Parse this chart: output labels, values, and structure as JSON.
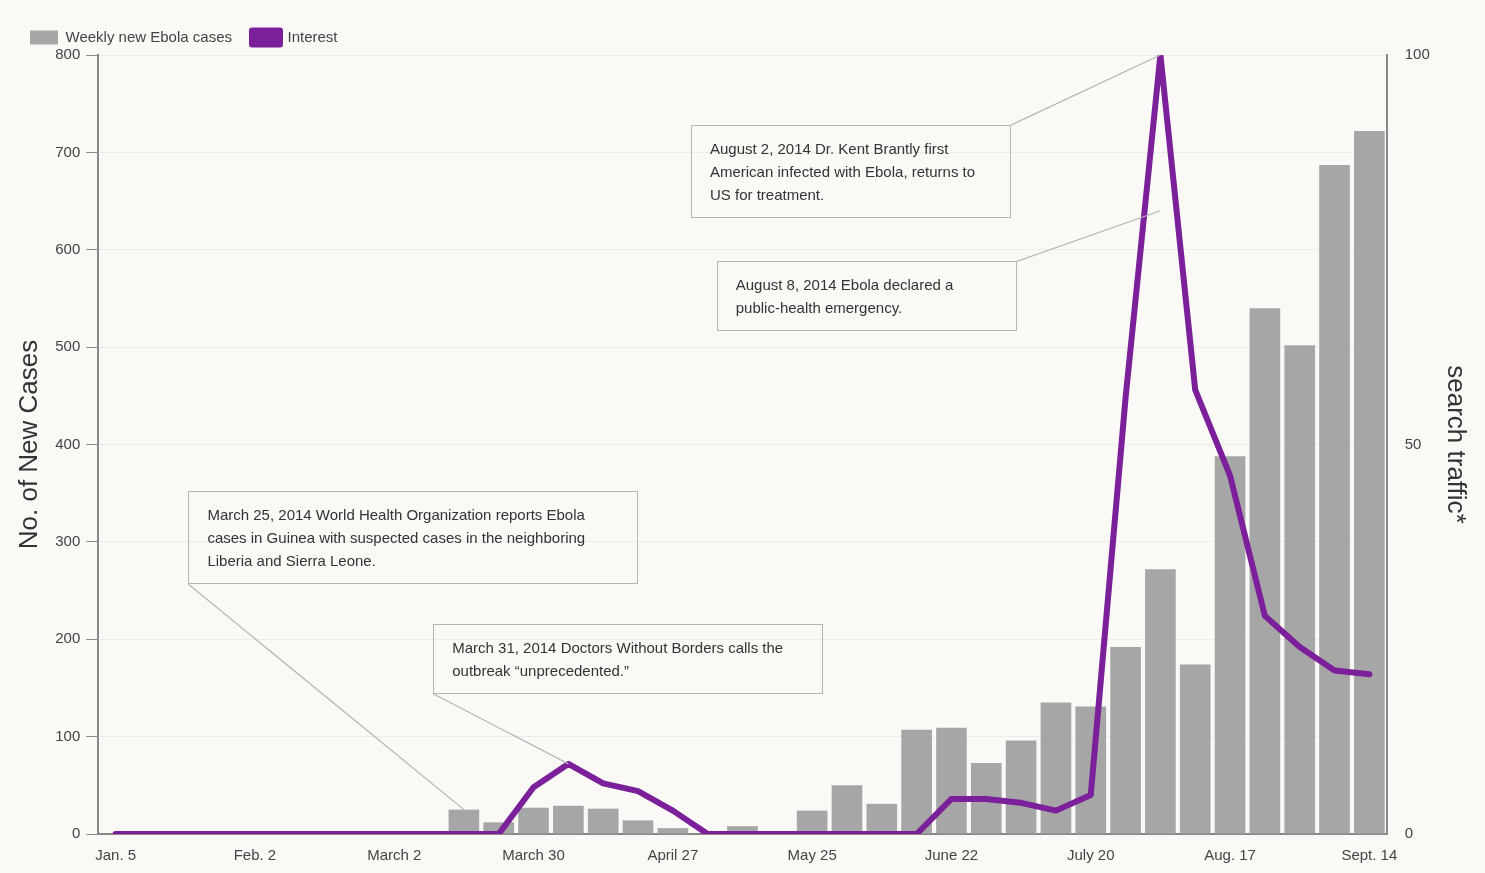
{
  "chart_data": {
    "type": "bar",
    "categories": [
      "Jan. 5",
      null,
      null,
      null,
      "Feb. 2",
      null,
      null,
      null,
      "March 2",
      null,
      null,
      null,
      "March 30",
      null,
      null,
      null,
      "April 27",
      null,
      null,
      null,
      "May 25",
      null,
      null,
      null,
      "June 22",
      null,
      null,
      null,
      "July 20",
      null,
      null,
      null,
      "Aug. 17",
      null,
      null,
      null,
      "Sept. 14"
    ],
    "series": [
      {
        "name": "Weekly new Ebola cases",
        "color": "#a6a6a6",
        "values": [
          0,
          0,
          0,
          0,
          0,
          0,
          0,
          0,
          0,
          0,
          25,
          12,
          27,
          29,
          26,
          14,
          6,
          0,
          8,
          null,
          24,
          50,
          31,
          107,
          109,
          73,
          96,
          135,
          131,
          192,
          272,
          174,
          388,
          540,
          502,
          687,
          722
        ]
      },
      {
        "name": "Interest",
        "type": "line",
        "axis": "y2",
        "color": "#7b1f9a",
        "values": [
          0,
          0,
          0,
          0,
          0,
          0,
          0,
          0,
          0,
          0,
          0,
          0,
          6,
          9,
          6.5,
          5.5,
          3,
          0,
          0,
          0,
          0,
          0,
          0,
          0,
          4.5,
          4.5,
          4,
          3,
          5,
          56,
          100,
          57,
          46,
          28,
          24,
          21,
          20.5
        ]
      }
    ],
    "ylabel": "No. of New Cases",
    "y2label": "search traffic*",
    "ylim": [
      0,
      800
    ],
    "yticks": [
      0,
      100,
      200,
      300,
      400,
      500,
      600,
      700,
      800
    ],
    "y2lim": [
      0,
      100
    ],
    "y2ticks": [
      0,
      50,
      100
    ],
    "grid": "y",
    "legend": "top left",
    "marker": "none",
    "line_style": "solid",
    "annotations": [
      "March 25, 2014 World Health Organization reports Ebola cases in Guinea with suspected cases in the neighboring Liberia and Sierra Leone.",
      "March 31, 2014 Doctors Without Borders calls the outbreak “unprecedented.”",
      "August 2, 2014 Dr. Kent Brantly first American infected with Ebola, returns to US for treatment.",
      "August 8, 2014 Ebola declared a public-health emergency."
    ]
  }
}
